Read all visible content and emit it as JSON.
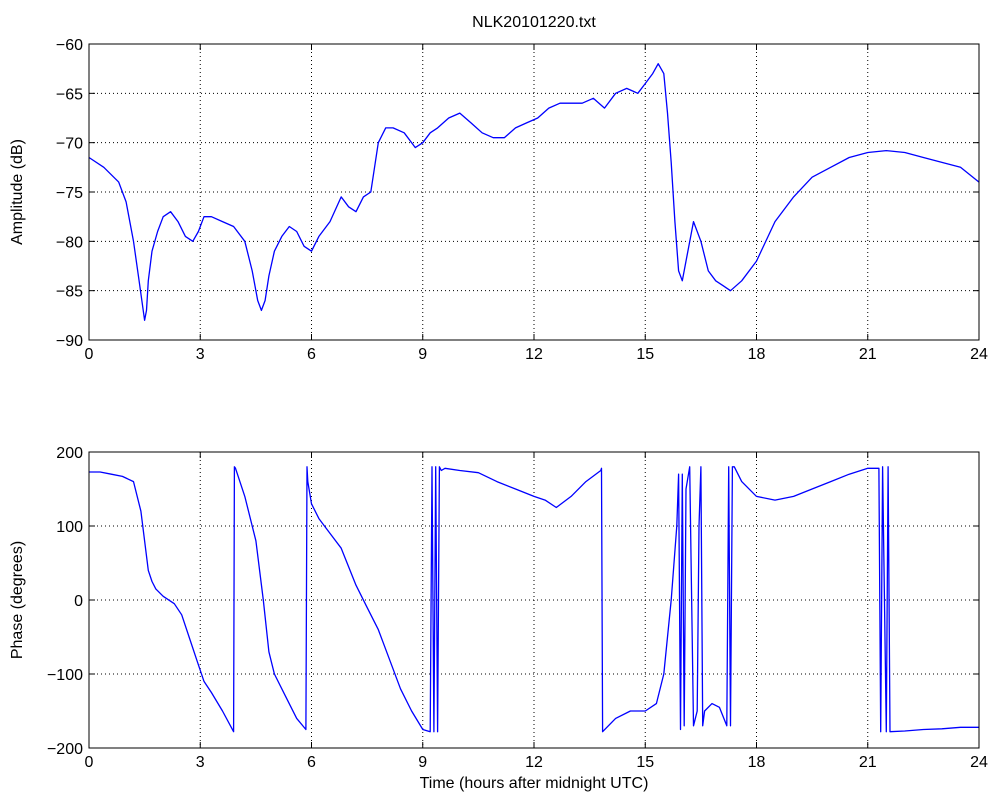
{
  "chart_data": [
    {
      "type": "line",
      "title": "NLK20101220.txt",
      "xlabel": "",
      "ylabel": "Amplitude (dB)",
      "xlim": [
        0,
        24
      ],
      "ylim": [
        -90,
        -60
      ],
      "xticks": [
        "0",
        "3",
        "6",
        "9",
        "12",
        "15",
        "18",
        "21",
        "24"
      ],
      "yticks": [
        "−60",
        "−65",
        "−70",
        "−75",
        "−80",
        "−85",
        "−90"
      ],
      "grid": true,
      "series": [
        {
          "color": "#0000ff",
          "x": [
            0,
            0.4,
            0.8,
            1.0,
            1.2,
            1.35,
            1.5,
            1.55,
            1.6,
            1.7,
            1.85,
            2.0,
            2.2,
            2.4,
            2.6,
            2.8,
            2.95,
            3.1,
            3.3,
            3.6,
            3.9,
            4.2,
            4.4,
            4.55,
            4.65,
            4.75,
            4.85,
            5.0,
            5.2,
            5.4,
            5.6,
            5.8,
            6.0,
            6.2,
            6.5,
            6.8,
            7.0,
            7.2,
            7.4,
            7.6,
            7.8,
            8.0,
            8.2,
            8.5,
            8.8,
            9.0,
            9.2,
            9.4,
            9.7,
            10.0,
            10.3,
            10.6,
            10.9,
            11.2,
            11.5,
            11.8,
            12.1,
            12.4,
            12.7,
            13.0,
            13.3,
            13.6,
            13.9,
            14.2,
            14.5,
            14.8,
            15.0,
            15.2,
            15.35,
            15.5,
            15.6,
            15.7,
            15.8,
            15.9,
            16.0,
            16.1,
            16.3,
            16.5,
            16.7,
            16.9,
            17.1,
            17.3,
            17.6,
            18.0,
            18.5,
            19.0,
            19.5,
            20.0,
            20.5,
            21.0,
            21.5,
            22.0,
            22.5,
            23.0,
            23.5,
            24.0
          ],
          "y": [
            -71.5,
            -72.5,
            -74,
            -76,
            -80,
            -84,
            -88,
            -87,
            -84,
            -81,
            -79,
            -77.5,
            -77,
            -78,
            -79.5,
            -80,
            -79,
            -77.5,
            -77.5,
            -78,
            -78.5,
            -80,
            -83,
            -86,
            -87,
            -86,
            -83.5,
            -81,
            -79.5,
            -78.5,
            -79,
            -80.5,
            -81,
            -79.5,
            -78,
            -75.5,
            -76.5,
            -77,
            -75.5,
            -75,
            -70,
            -68.5,
            -68.5,
            -69,
            -70.5,
            -70,
            -69,
            -68.5,
            -67.5,
            -67,
            -68,
            -69,
            -69.5,
            -69.5,
            -68.5,
            -68,
            -67.5,
            -66.5,
            -66,
            -66,
            -66,
            -65.5,
            -66.5,
            -65,
            -64.5,
            -65,
            -64,
            -63,
            -62,
            -63,
            -67,
            -72,
            -78,
            -83,
            -84,
            -82,
            -78,
            -80,
            -83,
            -84,
            -84.5,
            -85,
            -84,
            -82,
            -78,
            -75.5,
            -73.5,
            -72.5,
            -71.5,
            -71,
            -70.8,
            -71,
            -71.5,
            -72,
            -72.5,
            -74
          ]
        }
      ]
    },
    {
      "type": "line",
      "title": "",
      "xlabel": "Time (hours after midnight UTC)",
      "ylabel": "Phase (degrees)",
      "xlim": [
        0,
        24
      ],
      "ylim": [
        -200,
        200
      ],
      "xticks": [
        "0",
        "3",
        "6",
        "9",
        "12",
        "15",
        "18",
        "21",
        "24"
      ],
      "yticks": [
        "200",
        "100",
        "0",
        "−100",
        "−200"
      ],
      "grid": true,
      "series": [
        {
          "color": "#0000ff",
          "x": [
            0,
            0.3,
            0.6,
            0.9,
            1.2,
            1.4,
            1.5,
            1.6,
            1.7,
            1.8,
            2.0,
            2.3,
            2.5,
            2.7,
            2.9,
            3.1,
            3.3,
            3.6,
            3.9,
            3.92,
            3.95,
            4.2,
            4.5,
            4.7,
            4.85,
            5.0,
            5.3,
            5.6,
            5.85,
            5.88,
            5.9,
            6.0,
            6.2,
            6.5,
            6.8,
            7.2,
            7.5,
            7.8,
            8.1,
            8.4,
            8.7,
            9.0,
            9.2,
            9.25,
            9.3,
            9.35,
            9.4,
            9.45,
            9.5,
            9.6,
            10.0,
            10.5,
            11.0,
            11.5,
            12.0,
            12.3,
            12.6,
            13.0,
            13.4,
            13.8,
            13.82,
            13.85,
            14.2,
            14.6,
            15.0,
            15.3,
            15.5,
            15.7,
            15.85,
            15.9,
            15.95,
            16.0,
            16.05,
            16.1,
            16.2,
            16.3,
            16.4,
            16.45,
            16.5,
            16.55,
            16.6,
            16.8,
            17.0,
            17.2,
            17.25,
            17.3,
            17.35,
            17.4,
            17.6,
            18.0,
            18.5,
            19.0,
            19.5,
            20.0,
            20.5,
            21.0,
            21.3,
            21.35,
            21.4,
            21.5,
            21.55,
            21.6,
            22.0,
            22.5,
            23.0,
            23.5,
            24.0
          ],
          "y": [
            173,
            173,
            170,
            167,
            160,
            120,
            80,
            40,
            25,
            15,
            5,
            -5,
            -20,
            -50,
            -80,
            -110,
            -125,
            -150,
            -178,
            180,
            178,
            140,
            80,
            0,
            -70,
            -100,
            -130,
            -160,
            -175,
            180,
            160,
            130,
            110,
            90,
            70,
            20,
            -10,
            -40,
            -80,
            -120,
            -150,
            -175,
            -178,
            180,
            -178,
            180,
            -178,
            180,
            175,
            178,
            175,
            172,
            160,
            150,
            140,
            135,
            125,
            140,
            160,
            175,
            178,
            -178,
            -160,
            -150,
            -150,
            -140,
            -100,
            0,
            100,
            170,
            -175,
            170,
            -170,
            150,
            180,
            -170,
            -150,
            100,
            180,
            -170,
            -150,
            -140,
            -145,
            -170,
            180,
            -170,
            180,
            180,
            160,
            140,
            135,
            140,
            150,
            160,
            170,
            178,
            178,
            -178,
            180,
            -178,
            180,
            -178,
            -177,
            -175,
            -174,
            -172,
            -172
          ]
        }
      ]
    }
  ]
}
